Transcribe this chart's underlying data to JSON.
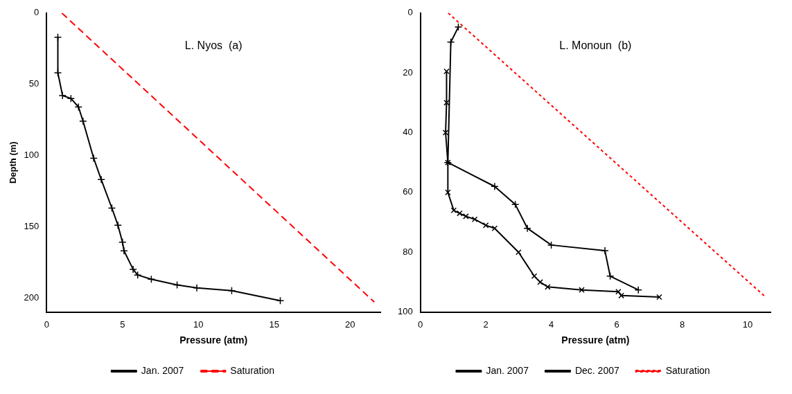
{
  "chart_data": [
    {
      "type": "line",
      "title": "L. Nyos  (a)",
      "xlabel": "Pressure (atm)",
      "ylabel": "Depth (m)",
      "xlim": [
        0,
        22
      ],
      "xticks": [
        0,
        5,
        10,
        15,
        20
      ],
      "ylim": [
        210,
        0
      ],
      "yticks": [
        0,
        50,
        100,
        150,
        200
      ],
      "grid": false,
      "legend": "bottom",
      "series": [
        {
          "name": "Jan. 2007",
          "color": "#000000",
          "marker": "cross",
          "line_style": "solid",
          "x": [
            0.74,
            0.74,
            1.05,
            1.6,
            2.1,
            2.4,
            3.1,
            3.6,
            4.3,
            4.7,
            5.0,
            5.1,
            5.7,
            6.0,
            6.9,
            8.6,
            9.9,
            12.2,
            15.4
          ],
          "values": [
            17,
            42,
            58,
            60,
            66,
            76,
            102,
            117,
            137,
            149,
            161,
            167,
            180,
            184,
            187,
            191,
            193,
            195,
            202
          ]
        },
        {
          "name": "Saturation",
          "color": "#ff0000",
          "marker": "none",
          "line_style": "dashed",
          "x": [
            1,
            21.6
          ],
          "values": [
            0,
            203
          ]
        }
      ]
    },
    {
      "type": "line",
      "title": "L. Monoun  (b)",
      "xlabel": "Pressure (atm)",
      "xlim": [
        0,
        10.7
      ],
      "xticks": [
        0,
        2,
        4,
        6,
        8,
        10
      ],
      "ylim": [
        100,
        0
      ],
      "yticks": [
        0,
        20,
        40,
        60,
        80,
        100
      ],
      "grid": false,
      "legend": "bottom",
      "series": [
        {
          "name": "Jan. 2007",
          "color": "#000000",
          "marker": "cross",
          "line_style": "solid",
          "x": [
            1.16,
            0.93,
            0.84,
            2.27,
            2.9,
            3.27,
            4.0,
            5.64,
            5.8,
            6.66
          ],
          "values": [
            4.7,
            9.7,
            50,
            58,
            64,
            72,
            77.6,
            79.5,
            88,
            92.6
          ]
        },
        {
          "name": "Dec. 2007",
          "color": "#000000",
          "marker": "cross",
          "line_style": "solid",
          "x": [
            0.8,
            0.8,
            0.77,
            0.84,
            0.84,
            1.02,
            1.2,
            1.39,
            1.66,
            2.0,
            2.27,
            3.0,
            3.48,
            3.66,
            3.89,
            4.93,
            6.05,
            6.14,
            7.3
          ],
          "values": [
            19.5,
            30,
            40,
            50,
            60,
            66,
            67,
            68,
            69,
            71,
            72,
            80,
            88,
            90,
            91.6,
            92.6,
            93.2,
            94.5,
            95
          ]
        },
        {
          "name": "Saturation",
          "color": "#ff0000",
          "marker": "none",
          "line_style": "dotted",
          "x": [
            0.85,
            10.55
          ],
          "values": [
            0,
            95
          ]
        }
      ]
    }
  ]
}
